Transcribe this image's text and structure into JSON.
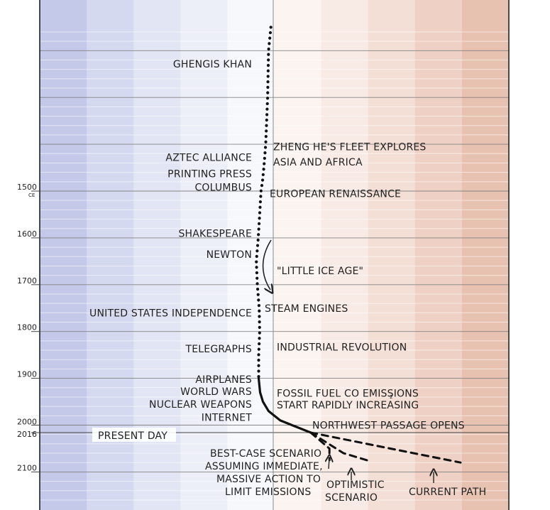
{
  "chart_data": {
    "type": "line",
    "title": "",
    "xlabel": "",
    "ylabel": "",
    "ylim": [
      1150,
      2180
    ],
    "y_ticks": [
      {
        "year": 1500,
        "label": "1500",
        "sub": "CE"
      },
      {
        "year": 1600,
        "label": "1600",
        "sub": ""
      },
      {
        "year": 1700,
        "label": "1700",
        "sub": ""
      },
      {
        "year": 1800,
        "label": "1800",
        "sub": ""
      },
      {
        "year": 1900,
        "label": "1900",
        "sub": ""
      },
      {
        "year": 2000,
        "label": "2000",
        "sub": ""
      },
      {
        "year": 2016,
        "label": "2016",
        "sub": ""
      },
      {
        "year": 2100,
        "label": "2100",
        "sub": ""
      }
    ],
    "present_day_label": "PRESENT DAY",
    "series": [
      {
        "style": "dotted",
        "points": [
          {
            "year": 1150,
            "temp": -0.05
          },
          {
            "year": 1200,
            "temp": -0.1
          },
          {
            "year": 1300,
            "temp": -0.12
          },
          {
            "year": 1400,
            "temp": -0.16
          },
          {
            "year": 1450,
            "temp": -0.2
          },
          {
            "year": 1480,
            "temp": -0.23
          },
          {
            "year": 1500,
            "temp": -0.26
          },
          {
            "year": 1550,
            "temp": -0.29
          },
          {
            "year": 1600,
            "temp": -0.32
          },
          {
            "year": 1650,
            "temp": -0.36
          },
          {
            "year": 1700,
            "temp": -0.34
          },
          {
            "year": 1750,
            "temp": -0.3
          },
          {
            "year": 1800,
            "temp": -0.29
          },
          {
            "year": 1850,
            "temp": -0.31
          },
          {
            "year": 1900,
            "temp": -0.31
          }
        ]
      },
      {
        "style": "solid",
        "points": [
          {
            "year": 1900,
            "temp": -0.31
          },
          {
            "year": 1930,
            "temp": -0.28
          },
          {
            "year": 1950,
            "temp": -0.22
          },
          {
            "year": 1970,
            "temp": -0.1
          },
          {
            "year": 1990,
            "temp": 0.15
          },
          {
            "year": 2000,
            "temp": 0.4
          },
          {
            "year": 2016,
            "temp": 0.8
          }
        ]
      },
      {
        "style": "dashed",
        "points": [
          {
            "year": 2016,
            "temp": 0.8
          },
          {
            "year": 2050,
            "temp": 1.2
          },
          {
            "year": 2075,
            "temp": 1.2
          }
        ]
      },
      {
        "style": "dashed",
        "points": [
          {
            "year": 2016,
            "temp": 0.8
          },
          {
            "year": 2060,
            "temp": 1.5
          },
          {
            "year": 2075,
            "temp": 2.0
          }
        ]
      },
      {
        "style": "dashed",
        "points": [
          {
            "year": 2016,
            "temp": 0.8
          },
          {
            "year": 2050,
            "temp": 2.5
          },
          {
            "year": 2080,
            "temp": 4.0
          }
        ]
      }
    ],
    "annotations_left": [
      {
        "text": "GHENGIS KHAN",
        "year": 1228
      },
      {
        "text": "AZTEC ALLIANCE",
        "year": 1428
      },
      {
        "text": "PRINTING PRESS",
        "year": 1463
      },
      {
        "text": "COLUMBUS",
        "year": 1492
      },
      {
        "text": "SHAKESPEARE",
        "year": 1590
      },
      {
        "text": "NEWTON",
        "year": 1635
      },
      {
        "text": "UNITED STATES INDEPENDENCE",
        "year": 1760
      },
      {
        "text": "TELEGRAPHS",
        "year": 1837
      },
      {
        "text": "AIRPLANES",
        "year": 1902
      },
      {
        "text": "WORLD WARS",
        "year": 1928
      },
      {
        "text": "NUCLEAR WEAPONS",
        "year": 1955
      },
      {
        "text": "INTERNET",
        "year": 1983
      }
    ],
    "annotations_right": [
      {
        "text": "ZHENG HE'S FLEET EXPLORES",
        "year": 1405
      },
      {
        "text": "ASIA AND AFRICA",
        "year": 1438
      },
      {
        "text": "EUROPEAN RENAISSANCE",
        "year": 1505
      },
      {
        "text": "\"LITTLE ICE AGE\"",
        "year": 1670
      },
      {
        "text": "STEAM ENGINES",
        "year": 1750
      },
      {
        "text": "INDUSTRIAL REVOLUTION",
        "year": 1833
      },
      {
        "text": "FOSSIL FUEL CO2 EMISSIONS",
        "year": 1932
      },
      {
        "text": "START RAPIDLY INCREASING",
        "year": 1957
      },
      {
        "text": "NORTHWEST PASSAGE OPENS",
        "year": 2000
      }
    ],
    "scenario_labels": {
      "best_case": [
        "BEST-CASE SCENARIO",
        "ASSUMING IMMEDIATE,",
        "MASSIVE ACTION TO",
        "LIMIT EMISSIONS"
      ],
      "optimistic": [
        "OPTIMISTIC",
        "SCENARIO"
      ],
      "current": [
        "CURRENT PATH"
      ]
    }
  }
}
